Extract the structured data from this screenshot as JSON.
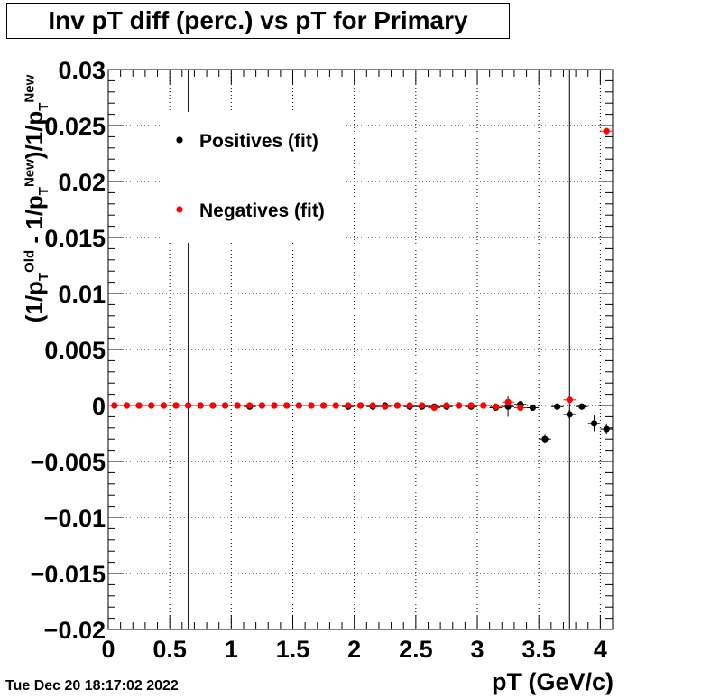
{
  "title": "Inv pT diff (perc.) vs pT for Primary",
  "timestamp": "Tue Dec 20 18:17:02 2022",
  "xlabel": "pT (GeV/c)",
  "ylabel_parts": {
    "p1": "(1/p",
    "t1": "T",
    "s1": "Old",
    "p2": " - 1/p",
    "t2": "T",
    "s2": "New",
    "p3": ")/1/p",
    "t3": "T",
    "s3": "New"
  },
  "chart_data": {
    "type": "scatter",
    "title": "Inv pT diff (perc.) vs pT for Primary",
    "xlabel": "pT (GeV/c)",
    "ylabel": "(1/pT^Old - 1/pT^New)/1/pT^New",
    "xlim": [
      0,
      4.1
    ],
    "ylim": [
      -0.02,
      0.03
    ],
    "x_ticks": [
      0,
      0.5,
      1,
      1.5,
      2,
      2.5,
      3,
      3.5,
      4
    ],
    "x_tick_labels": [
      "0",
      "0.5",
      "1",
      "1.5",
      "2",
      "2.5",
      "3",
      "3.5",
      "4"
    ],
    "y_ticks": [
      -0.02,
      -0.015,
      -0.01,
      -0.005,
      0,
      0.005,
      0.01,
      0.015,
      0.02,
      0.025,
      0.03
    ],
    "y_tick_labels": [
      "−0.02",
      "−0.015",
      "−0.01",
      "−0.005",
      "0",
      "0.005",
      "0.01",
      "0.015",
      "0.02",
      "0.025",
      "0.03"
    ],
    "grid": true,
    "vertical_lines_x": [
      0.65,
      3.75
    ],
    "legend_position": "top-left",
    "series": [
      {
        "name": "Positives (fit)",
        "color": "#000000",
        "points": [
          {
            "x": 0.05,
            "y": 0.0
          },
          {
            "x": 0.15,
            "y": 0.0
          },
          {
            "x": 0.25,
            "y": 0.0
          },
          {
            "x": 0.35,
            "y": 0.0
          },
          {
            "x": 0.45,
            "y": 0.0
          },
          {
            "x": 0.55,
            "y": 0.0
          },
          {
            "x": 0.65,
            "y": 0.0
          },
          {
            "x": 0.75,
            "y": 0.0
          },
          {
            "x": 0.85,
            "y": 0.0
          },
          {
            "x": 0.95,
            "y": 0.0
          },
          {
            "x": 1.05,
            "y": 0.0
          },
          {
            "x": 1.15,
            "y": -0.0001
          },
          {
            "x": 1.25,
            "y": 0.0
          },
          {
            "x": 1.35,
            "y": 0.0
          },
          {
            "x": 1.45,
            "y": 0.0
          },
          {
            "x": 1.55,
            "y": 0.0
          },
          {
            "x": 1.65,
            "y": 0.0
          },
          {
            "x": 1.75,
            "y": 0.0
          },
          {
            "x": 1.85,
            "y": 0.0
          },
          {
            "x": 1.95,
            "y": -0.0001
          },
          {
            "x": 2.05,
            "y": 0.0
          },
          {
            "x": 2.15,
            "y": -0.0001
          },
          {
            "x": 2.25,
            "y": 0.0
          },
          {
            "x": 2.35,
            "y": 0.0
          },
          {
            "x": 2.45,
            "y": -0.0001
          },
          {
            "x": 2.55,
            "y": -0.0001
          },
          {
            "x": 2.65,
            "y": -0.0001
          },
          {
            "x": 2.75,
            "y": -0.0001
          },
          {
            "x": 2.85,
            "y": 0.0
          },
          {
            "x": 2.95,
            "y": -0.0001
          },
          {
            "x": 3.05,
            "y": 0.0
          },
          {
            "x": 3.15,
            "y": -0.0002
          },
          {
            "x": 3.25,
            "y": -0.0001,
            "err": 0.0009
          },
          {
            "x": 3.35,
            "y": 0.0001
          },
          {
            "x": 3.45,
            "y": -0.0002
          },
          {
            "x": 3.55,
            "y": -0.003,
            "err": 0.0004
          },
          {
            "x": 3.65,
            "y": -0.0001
          },
          {
            "x": 3.75,
            "y": -0.0008,
            "err": 0.0004
          },
          {
            "x": 3.85,
            "y": -0.0001
          },
          {
            "x": 3.95,
            "y": -0.0016,
            "err": 0.0007
          },
          {
            "x": 4.05,
            "y": -0.0021,
            "err": 0.0005
          }
        ]
      },
      {
        "name": "Negatives (fit)",
        "color": "#ff0000",
        "points": [
          {
            "x": 0.05,
            "y": 0.0
          },
          {
            "x": 0.15,
            "y": 0.0
          },
          {
            "x": 0.25,
            "y": 0.0
          },
          {
            "x": 0.35,
            "y": 0.0
          },
          {
            "x": 0.45,
            "y": 0.0
          },
          {
            "x": 0.55,
            "y": 0.0
          },
          {
            "x": 0.65,
            "y": 0.0
          },
          {
            "x": 0.75,
            "y": 0.0
          },
          {
            "x": 0.85,
            "y": 0.0
          },
          {
            "x": 0.95,
            "y": 0.0
          },
          {
            "x": 1.05,
            "y": 0.0
          },
          {
            "x": 1.15,
            "y": 0.0
          },
          {
            "x": 1.25,
            "y": 0.0
          },
          {
            "x": 1.35,
            "y": 0.0
          },
          {
            "x": 1.45,
            "y": 0.0
          },
          {
            "x": 1.55,
            "y": 0.0
          },
          {
            "x": 1.65,
            "y": 0.0
          },
          {
            "x": 1.75,
            "y": 0.0
          },
          {
            "x": 1.85,
            "y": 0.0
          },
          {
            "x": 1.95,
            "y": 0.0
          },
          {
            "x": 2.05,
            "y": 0.0
          },
          {
            "x": 2.15,
            "y": 0.0
          },
          {
            "x": 2.25,
            "y": -0.0001
          },
          {
            "x": 2.35,
            "y": 0.0
          },
          {
            "x": 2.45,
            "y": 0.0
          },
          {
            "x": 2.55,
            "y": 0.0
          },
          {
            "x": 2.65,
            "y": -0.0002
          },
          {
            "x": 2.75,
            "y": 0.0
          },
          {
            "x": 2.85,
            "y": 0.0
          },
          {
            "x": 2.95,
            "y": 0.0
          },
          {
            "x": 3.05,
            "y": 0.0
          },
          {
            "x": 3.15,
            "y": -0.0001
          },
          {
            "x": 3.25,
            "y": 0.0003
          },
          {
            "x": 3.35,
            "y": -0.0002
          },
          {
            "x": 3.75,
            "y": 0.0005
          },
          {
            "x": 4.05,
            "y": 0.0245
          }
        ]
      }
    ]
  }
}
